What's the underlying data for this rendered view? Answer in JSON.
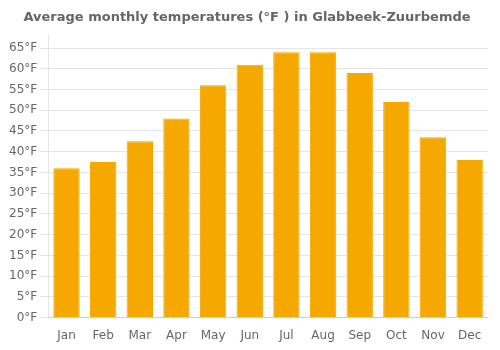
{
  "chart_data": {
    "type": "bar",
    "title": "Average monthly temperatures (°F ) in Glabbeek-Zuurbemde",
    "categories": [
      "Jan",
      "Feb",
      "Mar",
      "Apr",
      "May",
      "Jun",
      "Jul",
      "Aug",
      "Sep",
      "Oct",
      "Nov",
      "Dec"
    ],
    "values": [
      36,
      37.5,
      42.5,
      48,
      56,
      61,
      64,
      64,
      59,
      52,
      43.5,
      38
    ],
    "color": "#F5A800",
    "ylim": [
      0,
      68
    ],
    "yticks": [
      {
        "value": 0,
        "label": "0°F"
      },
      {
        "value": 5,
        "label": "5°F"
      },
      {
        "value": 10,
        "label": "10°F"
      },
      {
        "value": 15,
        "label": "15°F"
      },
      {
        "value": 20,
        "label": "20°F"
      },
      {
        "value": 25,
        "label": "25°F"
      },
      {
        "value": 30,
        "label": "30°F"
      },
      {
        "value": 35,
        "label": "35°F"
      },
      {
        "value": 40,
        "label": "40°F"
      },
      {
        "value": 45,
        "label": "45°F"
      },
      {
        "value": 50,
        "label": "50°F"
      },
      {
        "value": 55,
        "label": "55°F"
      },
      {
        "value": 60,
        "label": "60°F"
      },
      {
        "value": 65,
        "label": "65°F"
      }
    ],
    "grid": true
  }
}
